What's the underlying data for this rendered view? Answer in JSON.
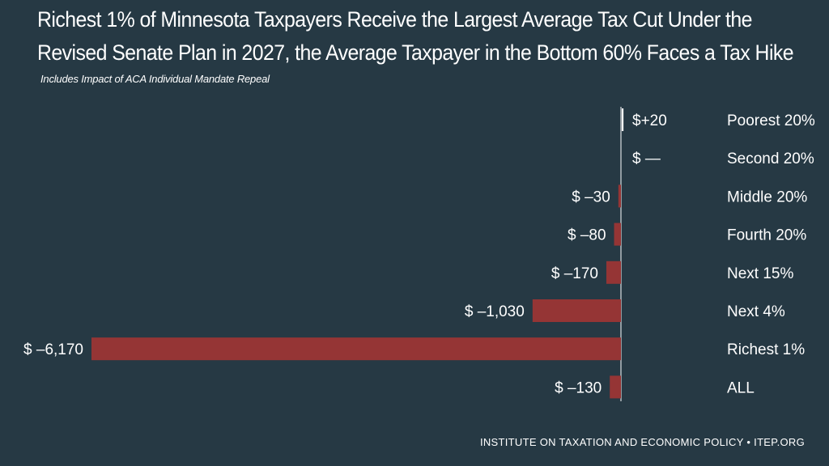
{
  "title_line1": "Richest 1% of Minnesota Taxpayers Receive the Largest Average Tax Cut Under the",
  "title_line2": "Revised Senate Plan in 2027, the Average Taxpayer in the Bottom 60% Faces a Tax Hike",
  "subtitle": "Includes Impact of ACA Individual Mandate Repeal",
  "footer": "INSTITUTE ON TAXATION AND ECONOMIC POLICY • ITEP.ORG",
  "colors": {
    "background": "#263944",
    "bar": "#953535",
    "text": "#ffffff"
  },
  "chart_data": {
    "type": "bar",
    "orientation": "horizontal",
    "categories": [
      "Poorest 20%",
      "Second 20%",
      "Middle 20%",
      "Fourth 20%",
      "Next 15%",
      "Next 4%",
      "Richest 1%",
      "ALL"
    ],
    "values": [
      20,
      0,
      -30,
      -80,
      -170,
      -1030,
      -6170,
      -130
    ],
    "value_labels": [
      "$+20",
      "$  —",
      "$ –30",
      "$ –80",
      "$ –170",
      "$ –1,030",
      "$ –6,170",
      "$ –130"
    ],
    "title": "Richest 1% of Minnesota Taxpayers Receive the Largest Average Tax Cut Under the Revised Senate Plan in 2027, the Average Taxpayer in the Bottom 60% Faces a Tax Hike",
    "xlabel": "",
    "ylabel": "",
    "xlim": [
      -6170,
      20
    ]
  }
}
